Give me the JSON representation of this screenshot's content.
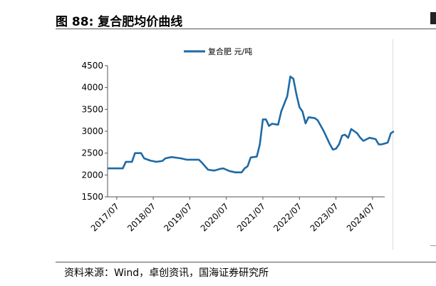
{
  "figure": {
    "title": "图 88:  复合肥均价曲线",
    "source": "资料来源：Wind，卓创资讯，国海证券研究所"
  },
  "colors": {
    "series": "#1f6aa5",
    "axis": "#555555",
    "text": "#000000"
  },
  "chart_data": {
    "type": "line",
    "title": "",
    "xlabel": "",
    "ylabel": "",
    "ylim": [
      1500,
      4500
    ],
    "yticks": [
      "1500",
      "2000",
      "2500",
      "3000",
      "3500",
      "4000",
      "4500"
    ],
    "xticks": [
      "2017/07",
      "2018/07",
      "2019/07",
      "2020/07",
      "2021/07",
      "2022/07",
      "2023/07",
      "2024/07"
    ],
    "xlim": [
      "2017/04",
      "2024/11"
    ],
    "grid": false,
    "legend_position": "top-center",
    "series": [
      {
        "name": "复合肥  元/吨",
        "points": [
          [
            "2017/04",
            2150
          ],
          [
            "2017/09",
            2150
          ],
          [
            "2017/10",
            2300
          ],
          [
            "2017/12",
            2300
          ],
          [
            "2018/01",
            2500
          ],
          [
            "2018/03",
            2500
          ],
          [
            "2018/04",
            2380
          ],
          [
            "2018/06",
            2330
          ],
          [
            "2018/08",
            2300
          ],
          [
            "2018/10",
            2320
          ],
          [
            "2018/11",
            2380
          ],
          [
            "2019/01",
            2410
          ],
          [
            "2019/04",
            2380
          ],
          [
            "2019/06",
            2350
          ],
          [
            "2019/10",
            2350
          ],
          [
            "2019/11",
            2280
          ],
          [
            "2019/12",
            2200
          ],
          [
            "2020/01",
            2120
          ],
          [
            "2020/03",
            2100
          ],
          [
            "2020/05",
            2140
          ],
          [
            "2020/06",
            2150
          ],
          [
            "2020/08",
            2090
          ],
          [
            "2020/10",
            2060
          ],
          [
            "2020/12",
            2060
          ],
          [
            "2021/01",
            2150
          ],
          [
            "2021/02",
            2200
          ],
          [
            "2021/03",
            2400
          ],
          [
            "2021/05",
            2420
          ],
          [
            "2021/06",
            2700
          ],
          [
            "2021/07",
            3270
          ],
          [
            "2021/08",
            3270
          ],
          [
            "2021/09",
            3120
          ],
          [
            "2021/10",
            3170
          ],
          [
            "2021/12",
            3150
          ],
          [
            "2022/01",
            3450
          ],
          [
            "2022/03",
            3800
          ],
          [
            "2022/04",
            4250
          ],
          [
            "2022/05",
            4200
          ],
          [
            "2022/06",
            3850
          ],
          [
            "2022/07",
            3550
          ],
          [
            "2022/08",
            3450
          ],
          [
            "2022/09",
            3180
          ],
          [
            "2022/10",
            3320
          ],
          [
            "2022/12",
            3300
          ],
          [
            "2023/01",
            3250
          ],
          [
            "2023/03",
            3000
          ],
          [
            "2023/05",
            2700
          ],
          [
            "2023/06",
            2580
          ],
          [
            "2023/07",
            2600
          ],
          [
            "2023/08",
            2700
          ],
          [
            "2023/09",
            2900
          ],
          [
            "2023/10",
            2920
          ],
          [
            "2023/11",
            2850
          ],
          [
            "2023/12",
            3050
          ],
          [
            "2024/01",
            3000
          ],
          [
            "2024/02",
            2950
          ],
          [
            "2024/03",
            2850
          ],
          [
            "2024/04",
            2780
          ],
          [
            "2024/06",
            2850
          ],
          [
            "2024/08",
            2820
          ],
          [
            "2024/09",
            2700
          ],
          [
            "2024/10",
            2700
          ],
          [
            "2024/11",
            2720
          ],
          [
            "2024/12",
            2740
          ],
          [
            "2025/01",
            2950
          ],
          [
            "2025/02",
            3000
          ]
        ]
      }
    ]
  }
}
